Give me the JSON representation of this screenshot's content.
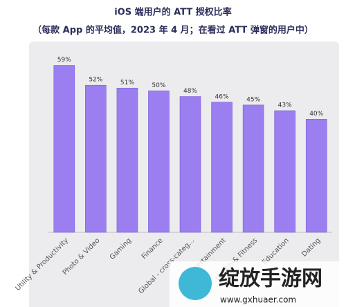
{
  "chart_data": {
    "type": "bar",
    "title": "iOS 端用户的 ATT 授权比率",
    "subtitle": "（每款 App 的平均值，2023 年 4 月；在看过 ATT 弹窗的用户中）",
    "categories": [
      "Utility & Productivity",
      "Photo & Video",
      "Gaming",
      "Finance",
      "Global - cross-categ...",
      "Entertainment",
      "Health & Fitness",
      "Education",
      "Dating"
    ],
    "values": [
      59,
      52,
      51,
      50,
      48,
      46,
      45,
      43,
      40
    ],
    "value_labels": [
      "59%",
      "52%",
      "51%",
      "50%",
      "48%",
      "46%",
      "45%",
      "43%",
      "40%"
    ],
    "color": "#9b7ef0",
    "ylim": [
      0,
      65
    ]
  },
  "watermark": {
    "name": "绽放手游网",
    "url": "www.gxhuaer.com"
  }
}
